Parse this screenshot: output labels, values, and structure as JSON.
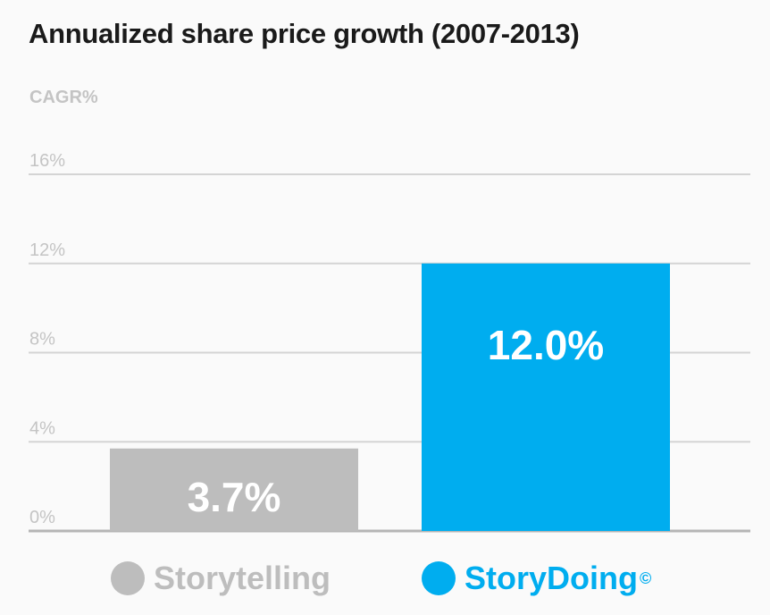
{
  "colors": {
    "storytelling": "#bdbdbd",
    "storydoing": "#00adef",
    "grid": "#d4d4d4",
    "axis": "#b5b5b5"
  },
  "chart_data": {
    "type": "bar",
    "title": "Annualized share price growth (2007-2013)",
    "ylabel": "CAGR%",
    "xlabel": "",
    "ylim": [
      0,
      16
    ],
    "yticks": [
      0,
      4,
      8,
      12,
      16
    ],
    "ytick_labels": [
      "0%",
      "4%",
      "8%",
      "12%",
      "16%"
    ],
    "grid": true,
    "legend_position": "bottom",
    "categories": [
      "Storytelling",
      "StoryDoing"
    ],
    "values": [
      3.7,
      12.0
    ],
    "data_labels": [
      "3.7%",
      "12.0%"
    ],
    "legend": [
      {
        "label": "Storytelling",
        "mark": ""
      },
      {
        "label": "StoryDoing",
        "mark": "©"
      }
    ]
  }
}
